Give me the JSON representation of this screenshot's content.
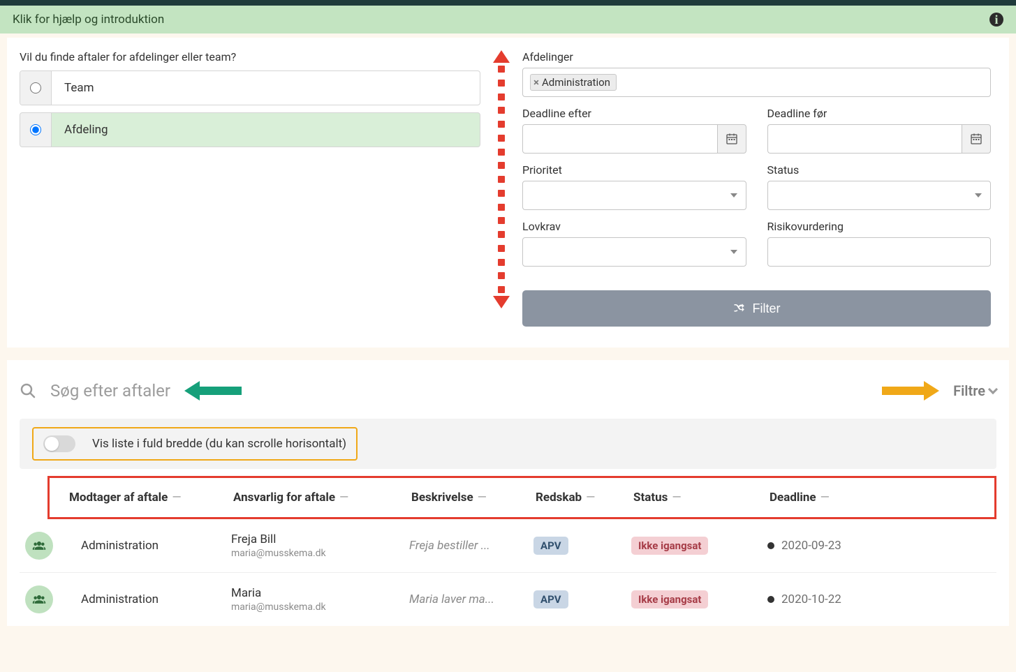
{
  "colors": {
    "page_bg": "#fdf7ee",
    "help_bg": "#c3e4c1",
    "help_text": "#2b4b2b",
    "radio_selected_bg": "#d9efd8",
    "filter_btn_bg": "#8b94a1",
    "annotation_red": "#e43c2e",
    "annotation_green": "#16a07a",
    "annotation_orange": "#f0a818",
    "badge_apv_bg": "#c9d6e5",
    "badge_apv_text": "#31506e",
    "badge_status_bg": "#f4cfd3",
    "badge_status_text": "#a63c47",
    "row_icon_bg": "#bfe1bf"
  },
  "help": {
    "text": "Klik for hjælp og introduktion"
  },
  "filter_panel": {
    "question": "Vil du finde aftaler for afdelinger eller team?",
    "options": {
      "team": "Team",
      "afdeling": "Afdeling",
      "selected": "afdeling"
    },
    "afdelinger_label": "Afdelinger",
    "afdelinger_tag": "Administration",
    "deadline_after_label": "Deadline efter",
    "deadline_before_label": "Deadline før",
    "prioritet_label": "Prioritet",
    "status_label": "Status",
    "lovkrav_label": "Lovkrav",
    "risiko_label": "Risikovurdering",
    "filter_button": "Filter"
  },
  "list_panel": {
    "search_placeholder": "Søg efter aftaler",
    "filtre_label": "Filtre",
    "toggle_label": "Vis liste i fuld bredde (du kan scrolle horisontalt)",
    "columns": {
      "modtager": "Modtager af aftale",
      "ansvarlig": "Ansvarlig for aftale",
      "beskrivelse": "Beskrivelse",
      "redskab": "Redskab",
      "status": "Status",
      "deadline": "Deadline"
    },
    "rows": [
      {
        "modtager": "Administration",
        "ansvarlig_name": "Freja Bill",
        "ansvarlig_email": "maria@musskema.dk",
        "beskrivelse": "Freja bestiller ...",
        "redskab": "APV",
        "status": "Ikke igangsat",
        "deadline": "2020-09-23"
      },
      {
        "modtager": "Administration",
        "ansvarlig_name": "Maria",
        "ansvarlig_email": "maria@musskema.dk",
        "beskrivelse": "Maria laver ma...",
        "redskab": "APV",
        "status": "Ikke igangsat",
        "deadline": "2020-10-22"
      }
    ]
  }
}
